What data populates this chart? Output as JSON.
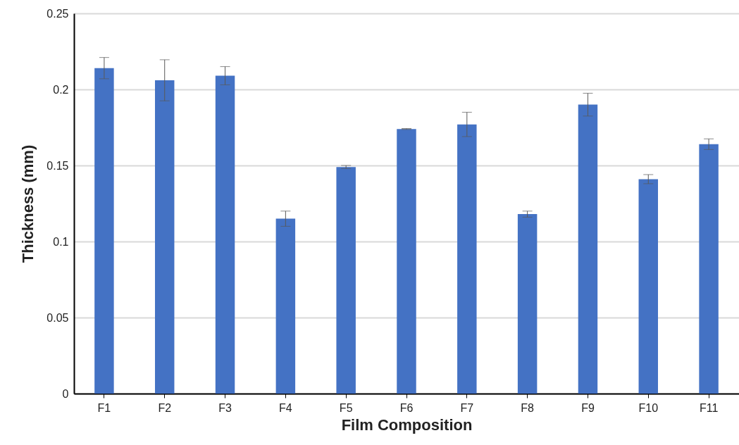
{
  "chart_data": {
    "type": "bar",
    "xlabel": "Film Composition",
    "ylabel": "Thickness (mm)",
    "categories": [
      "F1",
      "F2",
      "F3",
      "F4",
      "F5",
      "F6",
      "F7",
      "F8",
      "F9",
      "F10",
      "F11"
    ],
    "values": [
      0.214,
      0.206,
      0.209,
      0.115,
      0.149,
      0.174,
      0.177,
      0.118,
      0.19,
      0.141,
      0.164
    ],
    "errors": [
      0.007,
      0.0135,
      0.006,
      0.005,
      0.001,
      0.0003,
      0.008,
      0.002,
      0.0075,
      0.003,
      0.0035
    ],
    "color": "#4472c4",
    "ylim": [
      0,
      0.25
    ],
    "yticks": [
      0,
      0.05,
      0.1,
      0.15,
      0.2,
      0.25
    ],
    "grid": "y"
  }
}
